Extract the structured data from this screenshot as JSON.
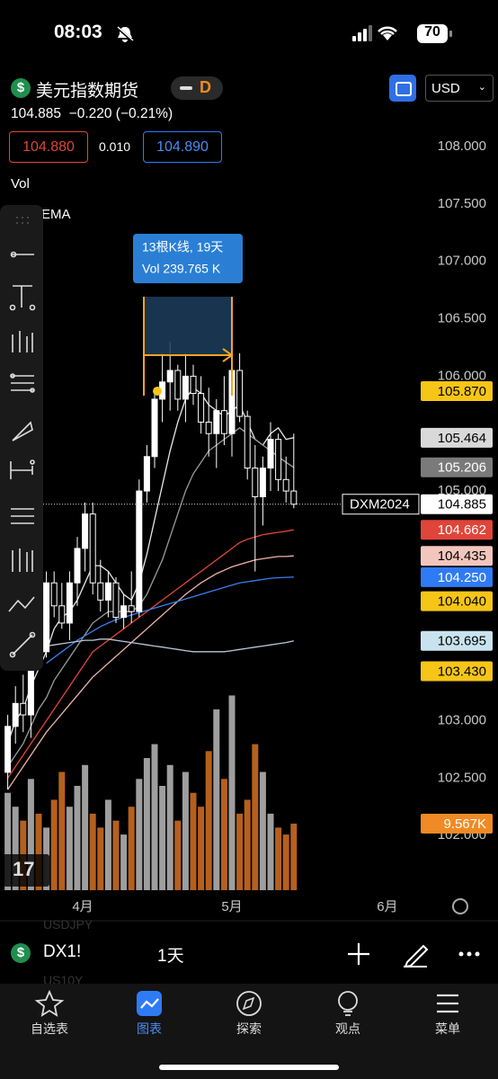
{
  "status_bar": {
    "time": "08:03",
    "battery": "70"
  },
  "header": {
    "symbol": "美元指数期货",
    "interval_badge": "D",
    "currency": "USD",
    "quote": "104.885",
    "change": "−0.220 (−0.21%)",
    "bid": "104.880",
    "spread": "0.010",
    "ask": "104.890"
  },
  "indicators": [
    "Vol",
    "EMA"
  ],
  "chart_data": {
    "type": "candlestick",
    "x": [
      0,
      1,
      2,
      3,
      4,
      5,
      6,
      7,
      8,
      9,
      10,
      11,
      12,
      13,
      14,
      15,
      16,
      17,
      18,
      19,
      20,
      21,
      22,
      23,
      24,
      25,
      26,
      27,
      28,
      29,
      30,
      31,
      32,
      33,
      34,
      35,
      36,
      37
    ],
    "xlim": [
      -1,
      54
    ],
    "xticks": [
      {
        "value": 9.7,
        "label": "4月"
      },
      {
        "value": 29,
        "label": "5月"
      },
      {
        "value": 49.1,
        "label": "6月"
      }
    ],
    "open": [
      102.55,
      102.95,
      103.15,
      103.05,
      103.75,
      103.6,
      104.2,
      104.0,
      103.85,
      104.2,
      104.5,
      104.8,
      104.2,
      104.05,
      104.2,
      103.9,
      104.0,
      103.95,
      105.0,
      105.3,
      105.8,
      105.95,
      106.05,
      105.8,
      106.0,
      105.85,
      105.6,
      105.5,
      105.7,
      105.5,
      106.05,
      105.65,
      105.2,
      104.95,
      105.2,
      105.45,
      105.1,
      105.0
    ],
    "high": [
      103.05,
      103.3,
      103.4,
      103.9,
      104.0,
      104.3,
      104.3,
      104.2,
      104.3,
      104.6,
      104.9,
      104.9,
      104.4,
      104.3,
      104.25,
      104.1,
      104.3,
      105.1,
      105.4,
      105.9,
      106.2,
      106.3,
      106.1,
      106.2,
      106.1,
      106.0,
      105.9,
      105.8,
      106.0,
      106.1,
      106.2,
      105.7,
      105.4,
      105.3,
      105.6,
      105.5,
      105.3,
      105.5
    ],
    "low": [
      102.4,
      102.8,
      102.9,
      102.85,
      103.5,
      103.55,
      103.9,
      103.8,
      103.7,
      104.0,
      104.3,
      104.1,
      103.95,
      103.9,
      103.85,
      103.8,
      103.85,
      103.9,
      104.9,
      105.2,
      105.6,
      105.7,
      105.7,
      105.6,
      105.75,
      105.5,
      105.3,
      105.2,
      105.4,
      105.3,
      105.6,
      105.1,
      104.3,
      104.7,
      105.0,
      105.0,
      104.9,
      104.85
    ],
    "close": [
      102.95,
      103.15,
      103.05,
      103.75,
      103.6,
      104.2,
      104.0,
      103.85,
      104.2,
      104.5,
      104.8,
      104.2,
      104.05,
      104.2,
      103.9,
      104.0,
      103.95,
      105.0,
      105.3,
      105.8,
      105.95,
      106.05,
      105.8,
      106.0,
      105.85,
      105.6,
      105.5,
      105.7,
      105.5,
      106.05,
      105.65,
      105.2,
      104.95,
      105.2,
      105.45,
      105.1,
      105.0,
      104.885
    ],
    "up_color": "#ffffff",
    "down_color": "#000000",
    "wick_color": "#ffffff",
    "ylim": [
      101.5,
      108.65
    ],
    "yticks": [
      {
        "value": 108,
        "label": "108.000"
      },
      {
        "value": 107.5,
        "label": "107.500"
      },
      {
        "value": 107,
        "label": "107.000"
      },
      {
        "value": 106.5,
        "label": "106.500"
      },
      {
        "value": 106,
        "label": "106.000"
      },
      {
        "value": 105,
        "label": "105.000"
      },
      {
        "value": 103,
        "label": "103.000"
      },
      {
        "value": 102.5,
        "label": "102.500"
      },
      {
        "value": 102,
        "label": "102.000"
      }
    ],
    "grid": false,
    "lines": [
      {
        "color": "#e6e6e6",
        "values": [
          102.8,
          103.0,
          103.1,
          103.3,
          103.45,
          103.6,
          103.8,
          103.9,
          103.95,
          104.05,
          104.2,
          104.35,
          104.35,
          104.3,
          104.2,
          104.1,
          104.05,
          104.2,
          104.45,
          104.75,
          105.05,
          105.35,
          105.6,
          105.8,
          105.9,
          105.85,
          105.75,
          105.7,
          105.65,
          105.7,
          105.75,
          105.6,
          105.45,
          105.4,
          105.5,
          105.55,
          105.45,
          105.464
        ]
      },
      {
        "color": "#9a9a9a",
        "values": [
          102.6,
          102.7,
          102.8,
          102.95,
          103.1,
          103.2,
          103.35,
          103.45,
          103.55,
          103.65,
          103.75,
          103.85,
          103.9,
          103.95,
          103.95,
          103.95,
          103.95,
          104.0,
          104.1,
          104.25,
          104.4,
          104.6,
          104.8,
          105.0,
          105.15,
          105.25,
          105.35,
          105.4,
          105.45,
          105.5,
          105.55,
          105.5,
          105.45,
          105.4,
          105.35,
          105.3,
          105.25,
          105.206
        ]
      },
      {
        "color": "#e0453a",
        "values": [
          102.5,
          102.6,
          102.7,
          102.8,
          102.9,
          103.0,
          103.1,
          103.2,
          103.3,
          103.4,
          103.5,
          103.6,
          103.65,
          103.7,
          103.75,
          103.8,
          103.85,
          103.9,
          103.95,
          104.0,
          104.05,
          104.1,
          104.15,
          104.2,
          104.25,
          104.3,
          104.35,
          104.4,
          104.45,
          104.5,
          104.55,
          104.58,
          104.6,
          104.62,
          104.63,
          104.64,
          104.65,
          104.662
        ]
      },
      {
        "color": "#f0b4a8",
        "values": [
          102.4,
          102.5,
          102.6,
          102.7,
          102.8,
          102.9,
          102.98,
          103.06,
          103.14,
          103.22,
          103.3,
          103.38,
          103.44,
          103.5,
          103.56,
          103.62,
          103.68,
          103.74,
          103.8,
          103.86,
          103.92,
          103.98,
          104.04,
          104.1,
          104.15,
          104.2,
          104.24,
          104.28,
          104.31,
          104.34,
          104.36,
          104.38,
          104.4,
          104.41,
          104.42,
          104.43,
          104.43,
          104.435
        ]
      },
      {
        "color": "#3a7ef0",
        "values": [
          null,
          null,
          null,
          null,
          null,
          103.5,
          103.55,
          103.6,
          103.65,
          103.7,
          103.74,
          103.78,
          103.82,
          103.85,
          103.88,
          103.9,
          103.92,
          103.94,
          103.96,
          103.98,
          104.0,
          104.02,
          104.04,
          104.06,
          104.08,
          104.1,
          104.12,
          104.14,
          104.16,
          104.18,
          104.2,
          104.21,
          104.22,
          104.23,
          104.24,
          104.245,
          104.248,
          104.25
        ]
      },
      {
        "color": "#b8c8d8",
        "values": [
          null,
          null,
          null,
          null,
          null,
          103.65,
          103.66,
          103.67,
          103.68,
          103.69,
          103.7,
          103.7,
          103.71,
          103.71,
          103.7,
          103.69,
          103.68,
          103.67,
          103.66,
          103.65,
          103.64,
          103.63,
          103.62,
          103.61,
          103.6,
          103.6,
          103.6,
          103.6,
          103.6,
          103.61,
          103.62,
          103.63,
          103.64,
          103.65,
          103.66,
          103.67,
          103.68,
          103.695
        ]
      }
    ],
    "volume": {
      "axis": "y2",
      "up_color": "#9e9e9e",
      "down_color": "#b5601e",
      "values": [
        14,
        12,
        10,
        16,
        11,
        9,
        13,
        17,
        12,
        15,
        18,
        11,
        9,
        13,
        10,
        8,
        12,
        16,
        19,
        21,
        15,
        18,
        10,
        17,
        14,
        12,
        20,
        26,
        16,
        28,
        11,
        13,
        21,
        17,
        11,
        9,
        8,
        9.567
      ]
    },
    "y2lim": [
      0,
      30
    ],
    "price_tags": [
      {
        "value": 105.87,
        "label": "105.870",
        "color": "#f5c518",
        "text_color": "#000000"
      },
      {
        "value": 105.464,
        "label": "105.464",
        "color": "#d9d9d9",
        "text_color": "#000000"
      },
      {
        "value": 105.206,
        "label": "105.206",
        "color": "#7a7a7a",
        "text_color": "#ffffff"
      },
      {
        "value": 104.885,
        "label": "104.885",
        "name": "DXM2024",
        "color": "#ffffff",
        "text_color": "#000000"
      },
      {
        "value": 104.662,
        "label": "104.662",
        "color": "#e0453a",
        "text_color": "#ffffff"
      },
      {
        "value": 104.435,
        "label": "104.435",
        "color": "#f3c6bd",
        "text_color": "#000000"
      },
      {
        "value": 104.25,
        "label": "104.250",
        "color": "#2f7bf5",
        "text_color": "#ffffff"
      },
      {
        "value": 104.04,
        "label": "104.040",
        "color": "#f5c518",
        "text_color": "#000000"
      },
      {
        "value": 103.695,
        "label": "103.695",
        "color": "#c9e3ee",
        "text_color": "#000000"
      },
      {
        "value": 103.43,
        "label": "103.430",
        "color": "#f5c518",
        "text_color": "#000000"
      }
    ],
    "volume_tag": {
      "value": 9.567,
      "label": "9.567K",
      "color": "#f08a24",
      "text_color": "#ffffff"
    },
    "measure": {
      "bars_label": "13根K线, 19天",
      "volume_label": "Vol 239.765 K"
    }
  },
  "ticker_bar": {
    "symbol": "DX1!",
    "interval": "1天",
    "faded_above": "USDJPY",
    "faded_below": "US10Y"
  },
  "tab_bar": {
    "tabs": [
      {
        "label": "自选表"
      },
      {
        "label": "图表"
      },
      {
        "label": "探索"
      },
      {
        "label": "观点"
      },
      {
        "label": "菜单"
      }
    ],
    "active_tab": 1
  }
}
